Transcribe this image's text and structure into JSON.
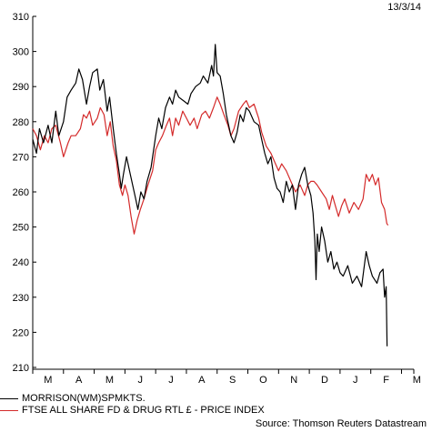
{
  "header": {
    "date": "13/3/14"
  },
  "legend": {
    "items": [
      {
        "label": "MORRISON(WM)SPMKTS.",
        "color": "#000000"
      },
      {
        "label": "FTSE ALL SHARE FD & DRUG RTL £ - PRICE INDEX",
        "color": "#d42a2a"
      }
    ]
  },
  "source": "Source: Thomson Reuters Datastream",
  "chart_data": {
    "type": "line",
    "title": "",
    "xlabel": "",
    "ylabel": "",
    "ylim": [
      210,
      310
    ],
    "yticks": [
      210,
      220,
      230,
      240,
      250,
      260,
      270,
      280,
      290,
      300,
      310
    ],
    "xlim": [
      0,
      12.4
    ],
    "month_labels": [
      "M",
      "A",
      "M",
      "J",
      "J",
      "A",
      "S",
      "O",
      "N",
      "D",
      "J",
      "F",
      "M"
    ],
    "grid": false,
    "legend_position": "bottom-left",
    "series": [
      {
        "name": "MORRISON(WM)SPMKTS.",
        "color": "#000000",
        "points": [
          [
            0.0,
            275
          ],
          [
            0.12,
            271
          ],
          [
            0.22,
            278
          ],
          [
            0.35,
            274
          ],
          [
            0.5,
            279
          ],
          [
            0.62,
            274
          ],
          [
            0.75,
            283
          ],
          [
            0.85,
            276
          ],
          [
            1.0,
            280
          ],
          [
            1.12,
            287
          ],
          [
            1.25,
            289
          ],
          [
            1.4,
            291
          ],
          [
            1.5,
            295
          ],
          [
            1.62,
            292
          ],
          [
            1.75,
            285
          ],
          [
            1.85,
            290
          ],
          [
            1.95,
            294
          ],
          [
            2.1,
            295
          ],
          [
            2.18,
            289
          ],
          [
            2.3,
            292
          ],
          [
            2.42,
            283
          ],
          [
            2.5,
            287
          ],
          [
            2.62,
            278
          ],
          [
            2.72,
            271
          ],
          [
            2.82,
            265
          ],
          [
            2.88,
            261
          ],
          [
            2.95,
            265
          ],
          [
            3.05,
            270
          ],
          [
            3.15,
            266
          ],
          [
            3.25,
            262
          ],
          [
            3.35,
            258
          ],
          [
            3.42,
            255
          ],
          [
            3.52,
            260
          ],
          [
            3.62,
            258
          ],
          [
            3.72,
            263
          ],
          [
            3.85,
            267
          ],
          [
            4.0,
            276
          ],
          [
            4.1,
            281
          ],
          [
            4.2,
            278
          ],
          [
            4.32,
            284
          ],
          [
            4.45,
            287
          ],
          [
            4.55,
            285
          ],
          [
            4.65,
            289
          ],
          [
            4.75,
            287
          ],
          [
            4.9,
            286
          ],
          [
            5.05,
            285
          ],
          [
            5.15,
            288
          ],
          [
            5.3,
            290
          ],
          [
            5.45,
            291
          ],
          [
            5.55,
            293
          ],
          [
            5.7,
            291
          ],
          [
            5.82,
            296
          ],
          [
            5.88,
            293
          ],
          [
            5.94,
            302
          ],
          [
            6.0,
            294
          ],
          [
            6.1,
            293
          ],
          [
            6.2,
            288
          ],
          [
            6.3,
            282
          ],
          [
            6.45,
            276
          ],
          [
            6.55,
            274
          ],
          [
            6.65,
            277
          ],
          [
            6.75,
            282
          ],
          [
            6.85,
            280
          ],
          [
            6.95,
            284
          ],
          [
            7.05,
            283
          ],
          [
            7.2,
            280
          ],
          [
            7.35,
            279
          ],
          [
            7.45,
            275
          ],
          [
            7.55,
            271
          ],
          [
            7.65,
            268
          ],
          [
            7.75,
            270
          ],
          [
            7.85,
            264
          ],
          [
            7.95,
            261
          ],
          [
            8.05,
            260
          ],
          [
            8.15,
            257
          ],
          [
            8.25,
            263
          ],
          [
            8.35,
            260
          ],
          [
            8.45,
            262
          ],
          [
            8.55,
            255
          ],
          [
            8.65,
            262
          ],
          [
            8.75,
            265
          ],
          [
            8.85,
            267
          ],
          [
            8.95,
            262
          ],
          [
            9.05,
            259
          ],
          [
            9.12,
            254
          ],
          [
            9.18,
            246
          ],
          [
            9.22,
            235
          ],
          [
            9.26,
            248
          ],
          [
            9.32,
            243
          ],
          [
            9.4,
            250
          ],
          [
            9.5,
            246
          ],
          [
            9.6,
            240
          ],
          [
            9.7,
            243
          ],
          [
            9.8,
            238
          ],
          [
            9.9,
            240
          ],
          [
            10.0,
            237
          ],
          [
            10.1,
            236
          ],
          [
            10.25,
            239
          ],
          [
            10.4,
            234
          ],
          [
            10.55,
            236
          ],
          [
            10.7,
            233
          ],
          [
            10.85,
            243
          ],
          [
            10.95,
            239
          ],
          [
            11.05,
            236
          ],
          [
            11.2,
            234
          ],
          [
            11.3,
            237
          ],
          [
            11.4,
            238
          ],
          [
            11.45,
            230
          ],
          [
            11.5,
            233
          ],
          [
            11.53,
            216
          ]
        ]
      },
      {
        "name": "FTSE ALL SHARE FD & DRUG RTL £ - PRICE INDEX",
        "color": "#d42a2a",
        "points": [
          [
            0.0,
            278
          ],
          [
            0.12,
            276
          ],
          [
            0.25,
            272
          ],
          [
            0.38,
            276
          ],
          [
            0.5,
            274
          ],
          [
            0.62,
            278
          ],
          [
            0.75,
            279
          ],
          [
            0.9,
            274
          ],
          [
            1.0,
            270
          ],
          [
            1.15,
            274
          ],
          [
            1.25,
            276
          ],
          [
            1.4,
            276
          ],
          [
            1.55,
            278
          ],
          [
            1.65,
            282
          ],
          [
            1.75,
            281
          ],
          [
            1.85,
            283
          ],
          [
            1.95,
            279
          ],
          [
            2.1,
            281
          ],
          [
            2.2,
            284
          ],
          [
            2.32,
            282
          ],
          [
            2.42,
            276
          ],
          [
            2.52,
            280
          ],
          [
            2.62,
            273
          ],
          [
            2.72,
            269
          ],
          [
            2.82,
            262
          ],
          [
            2.92,
            259
          ],
          [
            3.0,
            262
          ],
          [
            3.1,
            259
          ],
          [
            3.2,
            253
          ],
          [
            3.3,
            248
          ],
          [
            3.4,
            252
          ],
          [
            3.5,
            255
          ],
          [
            3.62,
            258
          ],
          [
            3.75,
            262
          ],
          [
            3.9,
            266
          ],
          [
            4.0,
            272
          ],
          [
            4.1,
            274
          ],
          [
            4.22,
            276
          ],
          [
            4.35,
            279
          ],
          [
            4.45,
            281
          ],
          [
            4.55,
            276
          ],
          [
            4.65,
            281
          ],
          [
            4.75,
            279
          ],
          [
            4.88,
            283
          ],
          [
            5.0,
            281
          ],
          [
            5.12,
            279
          ],
          [
            5.25,
            281
          ],
          [
            5.35,
            278
          ],
          [
            5.5,
            282
          ],
          [
            5.62,
            283
          ],
          [
            5.75,
            281
          ],
          [
            5.88,
            284
          ],
          [
            6.0,
            287
          ],
          [
            6.1,
            285
          ],
          [
            6.22,
            282
          ],
          [
            6.35,
            279
          ],
          [
            6.45,
            276
          ],
          [
            6.55,
            278
          ],
          [
            6.7,
            283
          ],
          [
            6.85,
            285
          ],
          [
            6.95,
            286
          ],
          [
            7.05,
            284
          ],
          [
            7.2,
            285
          ],
          [
            7.35,
            281
          ],
          [
            7.45,
            277
          ],
          [
            7.6,
            273
          ],
          [
            7.75,
            271
          ],
          [
            7.9,
            268
          ],
          [
            8.0,
            266
          ],
          [
            8.1,
            268
          ],
          [
            8.25,
            266
          ],
          [
            8.4,
            263
          ],
          [
            8.55,
            260
          ],
          [
            8.7,
            262
          ],
          [
            8.85,
            259
          ],
          [
            8.95,
            262
          ],
          [
            9.05,
            263
          ],
          [
            9.15,
            263
          ],
          [
            9.25,
            262
          ],
          [
            9.4,
            260
          ],
          [
            9.55,
            258
          ],
          [
            9.65,
            255
          ],
          [
            9.75,
            259
          ],
          [
            9.85,
            256
          ],
          [
            9.95,
            253
          ],
          [
            10.05,
            256
          ],
          [
            10.15,
            258
          ],
          [
            10.3,
            254
          ],
          [
            10.45,
            257
          ],
          [
            10.6,
            255
          ],
          [
            10.75,
            258
          ],
          [
            10.85,
            265
          ],
          [
            10.95,
            263
          ],
          [
            11.05,
            265
          ],
          [
            11.15,
            262
          ],
          [
            11.25,
            264
          ],
          [
            11.35,
            257
          ],
          [
            11.45,
            255
          ],
          [
            11.52,
            251
          ],
          [
            11.56,
            250.5
          ]
        ]
      }
    ]
  }
}
